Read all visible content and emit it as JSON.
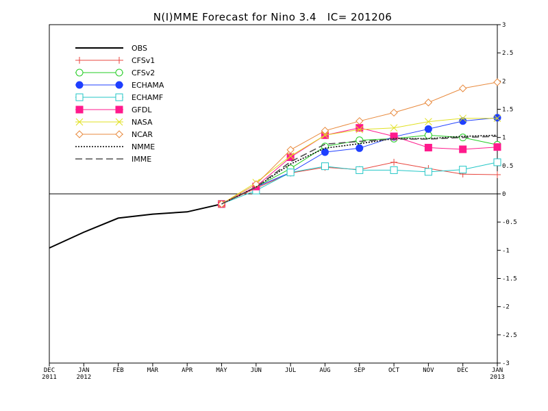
{
  "chart_data": {
    "type": "line",
    "title": "N(I)MME Forecast for Nino 3.4   IC= 201206",
    "xlabel": "",
    "ylabel": "",
    "x_categories": [
      "DEC 2011",
      "JAN 2012",
      "FEB",
      "MAR",
      "APR",
      "MAY",
      "JUN",
      "JUL",
      "AUG",
      "SEP",
      "OCT",
      "NOV",
      "DEC",
      "JAN 2013"
    ],
    "x_tick_labels": [
      {
        "top": "DEC",
        "bottom": "2011"
      },
      {
        "top": "JAN",
        "bottom": "2012"
      },
      {
        "top": "FEB",
        "bottom": ""
      },
      {
        "top": "MAR",
        "bottom": ""
      },
      {
        "top": "APR",
        "bottom": ""
      },
      {
        "top": "MAY",
        "bottom": ""
      },
      {
        "top": "JUN",
        "bottom": ""
      },
      {
        "top": "JUL",
        "bottom": ""
      },
      {
        "top": "AUG",
        "bottom": ""
      },
      {
        "top": "SEP",
        "bottom": ""
      },
      {
        "top": "OCT",
        "bottom": ""
      },
      {
        "top": "NOV",
        "bottom": ""
      },
      {
        "top": "DEC",
        "bottom": ""
      },
      {
        "top": "JAN",
        "bottom": "2013"
      }
    ],
    "ylim": [
      -3,
      3
    ],
    "y_ticks": [
      -3,
      -2.5,
      -2,
      -1.5,
      -1,
      -0.5,
      0,
      0.5,
      1,
      1.5,
      2,
      2.5,
      3
    ],
    "y_tick_labels": [
      "-3",
      "-2.5",
      "-2",
      "-1.5",
      "-1",
      "-0.5",
      "0",
      "0.5",
      "1",
      "1.5",
      "2",
      "2.5",
      "3"
    ],
    "y_axis_side": "right",
    "zero_line": true,
    "grid": false,
    "legend_position": "top-left",
    "series": [
      {
        "name": "OBS",
        "color": "#000000",
        "marker": "none",
        "dash": "solid",
        "width": 2,
        "x": [
          0,
          1,
          2,
          3,
          4,
          5
        ],
        "values": [
          -0.96,
          -0.68,
          -0.43,
          -0.36,
          -0.32,
          -0.18
        ]
      },
      {
        "name": "CFSv1",
        "color": "#e8443c",
        "marker": "plus",
        "dash": "solid",
        "width": 1,
        "x": [
          5,
          6,
          7,
          8,
          9,
          10,
          11,
          12,
          13
        ],
        "values": [
          -0.18,
          0.1,
          0.37,
          0.47,
          0.43,
          0.56,
          0.45,
          0.35,
          0.34
        ]
      },
      {
        "name": "CFSv2",
        "color": "#22cc22",
        "marker": "circle-open",
        "dash": "solid",
        "width": 1,
        "x": [
          5,
          6,
          7,
          8,
          9,
          10,
          11,
          12,
          13
        ],
        "values": [
          -0.18,
          0.12,
          0.45,
          0.84,
          0.95,
          0.98,
          1.04,
          1.0,
          0.87
        ]
      },
      {
        "name": "ECHAMA",
        "color": "#1f3fff",
        "marker": "circle-filled",
        "dash": "solid",
        "width": 1,
        "x": [
          5,
          6,
          7,
          8,
          9,
          10,
          11,
          12,
          13
        ],
        "values": [
          -0.18,
          0.12,
          0.38,
          0.74,
          0.81,
          1.01,
          1.15,
          1.29,
          1.35
        ]
      },
      {
        "name": "ECHAMF",
        "color": "#22c6c6",
        "marker": "square-open",
        "dash": "solid",
        "width": 1,
        "x": [
          5,
          6,
          7,
          8,
          9,
          10,
          11,
          12,
          13
        ],
        "values": [
          -0.18,
          0.06,
          0.38,
          0.49,
          0.42,
          0.42,
          0.39,
          0.43,
          0.56
        ]
      },
      {
        "name": "GFDL",
        "color": "#ff1a8c",
        "marker": "square-filled",
        "dash": "solid",
        "width": 1,
        "x": [
          5,
          6,
          7,
          8,
          9,
          10,
          11,
          12,
          13
        ],
        "values": [
          -0.18,
          0.13,
          0.65,
          1.04,
          1.17,
          1.02,
          0.82,
          0.79,
          0.83
        ]
      },
      {
        "name": "NASA",
        "color": "#e0e020",
        "marker": "cross",
        "dash": "solid",
        "width": 1,
        "x": [
          5,
          6,
          7,
          8,
          9,
          10,
          11,
          12,
          13
        ],
        "values": [
          -0.18,
          0.2,
          0.67,
          1.04,
          1.14,
          1.17,
          1.28,
          1.34,
          1.34
        ]
      },
      {
        "name": "NCAR",
        "color": "#e8893c",
        "marker": "diamond-open",
        "dash": "solid",
        "width": 1,
        "x": [
          5,
          6,
          7,
          8,
          9,
          10,
          11,
          12,
          13
        ],
        "values": [
          -0.18,
          0.17,
          0.78,
          1.12,
          1.29,
          1.44,
          1.62,
          1.87,
          1.98
        ]
      },
      {
        "name": "NMME",
        "color": "#000000",
        "marker": "none",
        "dash": "dotted",
        "width": 1.6,
        "x": [
          5,
          6,
          7,
          8,
          9,
          10,
          11,
          12,
          13
        ],
        "values": [
          -0.18,
          0.12,
          0.53,
          0.81,
          0.89,
          0.98,
          0.98,
          1.02,
          1.04
        ]
      },
      {
        "name": "IMME",
        "color": "#505050",
        "marker": "none",
        "dash": "dashed",
        "width": 1.6,
        "x": [
          5,
          6,
          7,
          8,
          9,
          10,
          11,
          12,
          13
        ],
        "values": [
          -0.18,
          0.12,
          0.57,
          0.88,
          0.93,
          0.97,
          0.97,
          1.0,
          1.02
        ]
      }
    ]
  }
}
